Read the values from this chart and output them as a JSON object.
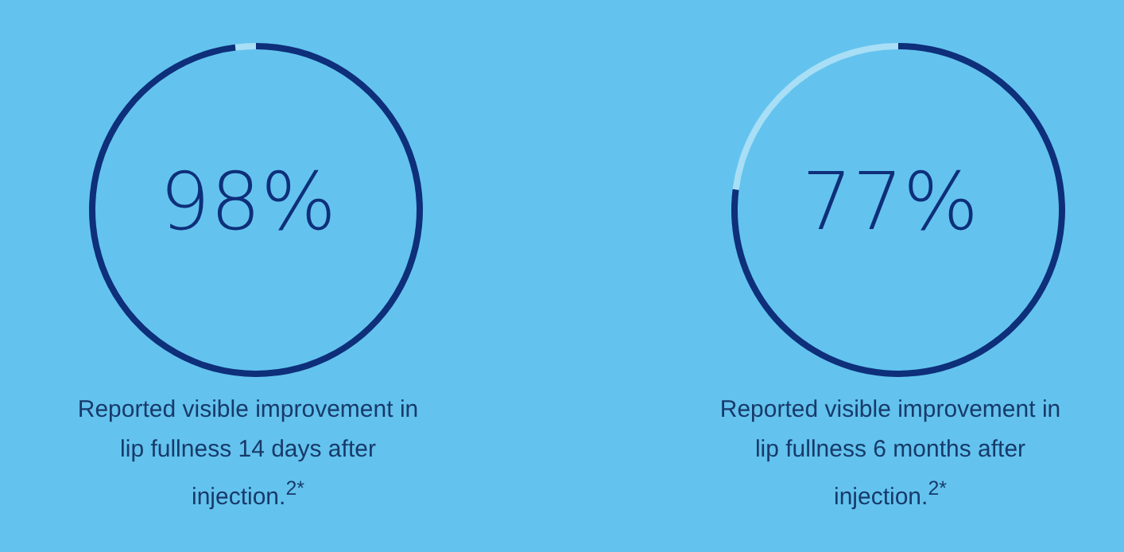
{
  "chart_data": [
    {
      "type": "donut",
      "categories": [
        null,
        null
      ],
      "values": [
        98,
        2
      ],
      "colors": [
        "#0e2f7a",
        "#a8def6"
      ],
      "annotations": [
        "98%",
        "Reported visible improvement in lip fullness 14 days after injection.$^{2*}$"
      ]
    },
    {
      "type": "donut",
      "categories": [
        null,
        null
      ],
      "values": [
        77,
        23
      ],
      "colors": [
        "#0e2f7a",
        "#a8def6"
      ],
      "annotations": [
        "77%",
        "Reported visible improvement in lip fullness 6 months after injection.$^{2*}$"
      ]
    }
  ]
}
